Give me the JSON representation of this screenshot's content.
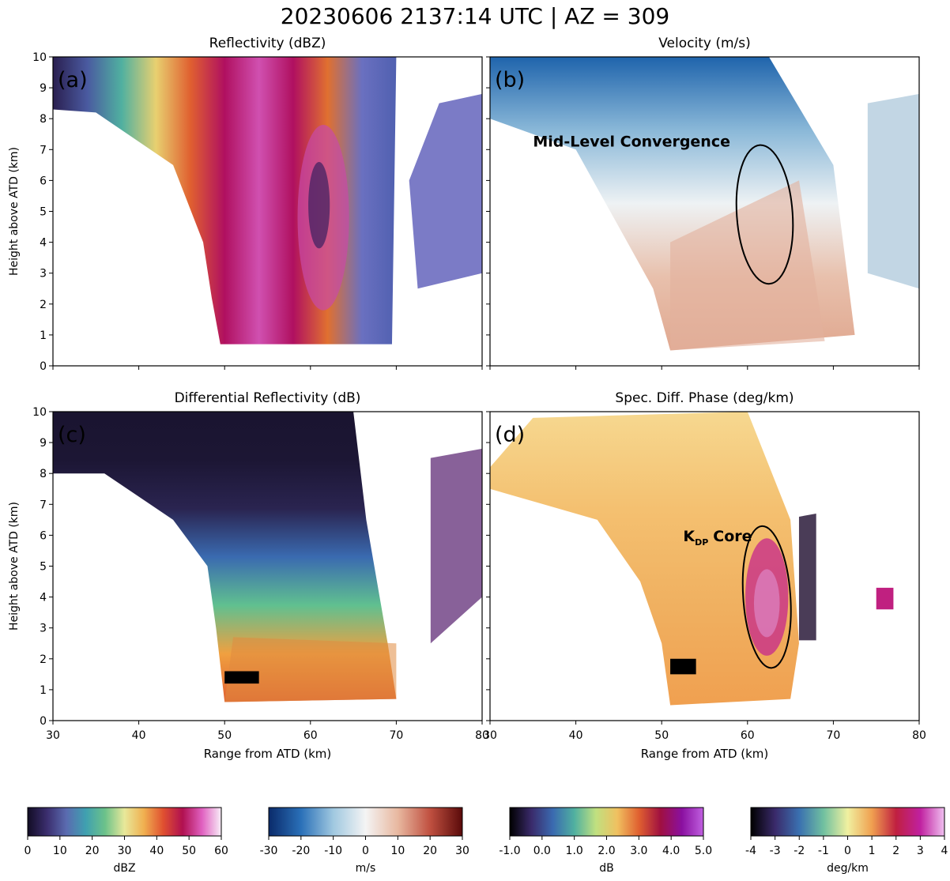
{
  "title": "20230606 2137:14 UTC | AZ = 309",
  "xlim": [
    30,
    80
  ],
  "ylim": [
    0,
    10
  ],
  "xticks": [
    30,
    40,
    50,
    60,
    70,
    80
  ],
  "yticks": [
    0,
    1,
    2,
    3,
    4,
    5,
    6,
    7,
    8,
    9,
    10
  ],
  "xlabel": "Range from ATD (km)",
  "ylabel": "Height above ATD (km)",
  "panels": [
    {
      "label": "(a)",
      "title": "Reflectivity (dBZ)"
    },
    {
      "label": "(b)",
      "title": "Velocity (m/s)",
      "annotation": "Mid-Level Convergence"
    },
    {
      "label": "(c)",
      "title": "Differential Reflectivity (dB)"
    },
    {
      "label": "(d)",
      "title": "Spec. Diff. Phase (deg/km)",
      "annotation_parts": [
        "K",
        "DP",
        "Core"
      ]
    }
  ],
  "colorbars": [
    {
      "label": "dBZ",
      "lim": [
        0,
        60
      ],
      "ticks": [
        0,
        10,
        20,
        30,
        40,
        50,
        60
      ],
      "colors": [
        "#120c24",
        "#3b2e6e",
        "#5a6bb0",
        "#3fa0b0",
        "#6cc28a",
        "#e8e89a",
        "#f0b050",
        "#e05030",
        "#b01050",
        "#e060c0",
        "#f8eef8"
      ]
    },
    {
      "label": "m/s",
      "lim": [
        -30,
        30
      ],
      "ticks": [
        -30,
        -20,
        -10,
        0,
        10,
        20,
        30
      ],
      "colors": [
        "#0a2a6a",
        "#2a70b8",
        "#a0c8e0",
        "#f4f4f4",
        "#e8b8a0",
        "#c05040",
        "#5a0a0a"
      ]
    },
    {
      "label": "dB",
      "lim": [
        -1,
        5
      ],
      "ticks": [
        {
          "value": -1,
          "label": "-1.0"
        },
        {
          "value": 0,
          "label": "0.0"
        },
        {
          "value": 1,
          "label": "1.0"
        },
        {
          "value": 2,
          "label": "2.0"
        },
        {
          "value": 3,
          "label": "3.0"
        },
        {
          "value": 4,
          "label": "4.0"
        },
        {
          "value": 5,
          "label": "5.0"
        }
      ],
      "colors": [
        "#000000",
        "#3a2a6a",
        "#3a6ab0",
        "#50b0a0",
        "#c0e080",
        "#f0c060",
        "#e06030",
        "#a01040",
        "#8a10a0",
        "#c060e0"
      ]
    },
    {
      "label": "deg/km",
      "lim": [
        -4,
        4
      ],
      "ticks": [
        -4,
        -3,
        -2,
        -1,
        0,
        1,
        2,
        3,
        4
      ],
      "colors": [
        "#000000",
        "#3a2a6a",
        "#3a70b0",
        "#70c0a0",
        "#f0f0a0",
        "#f0a050",
        "#c02040",
        "#c020a0",
        "#f0c0f0"
      ]
    }
  ]
}
